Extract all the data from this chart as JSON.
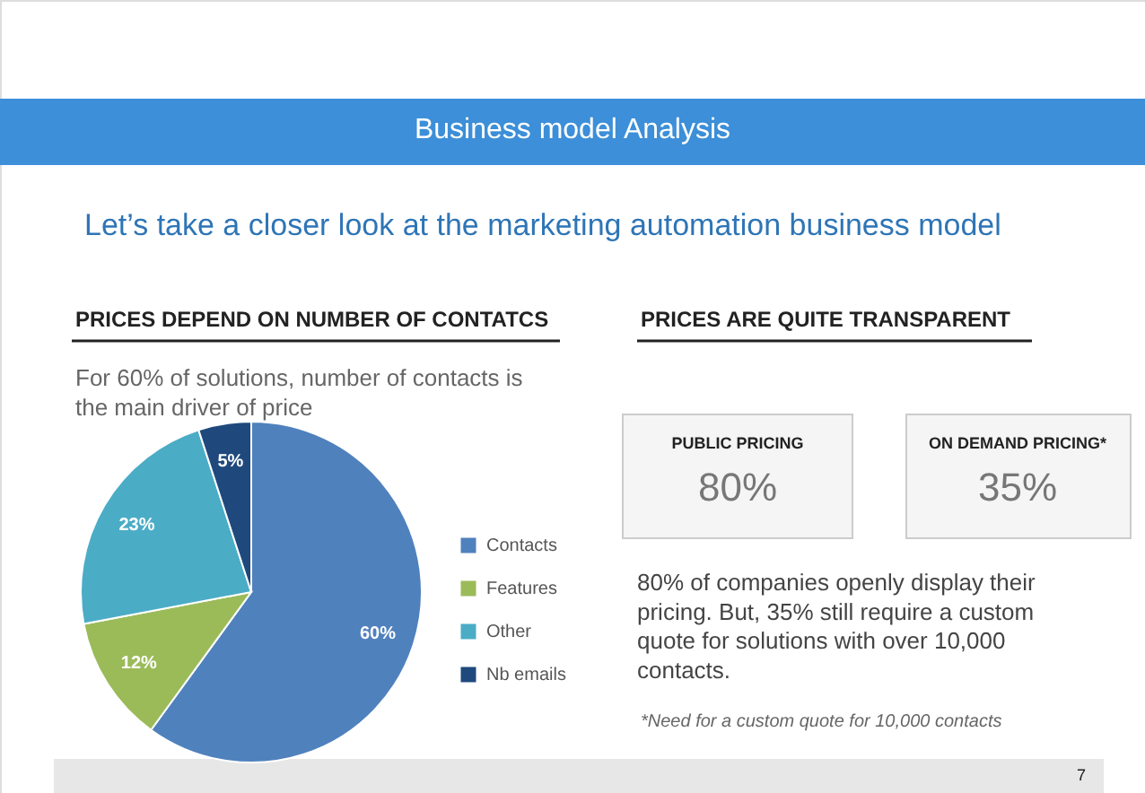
{
  "chart_data": {
    "type": "pie",
    "title": "Business model Analysis",
    "subtitle": "Let’s take a closer look at the marketing automation business model",
    "categories": [
      "Contacts",
      "Features",
      "Other",
      "Nb emails"
    ],
    "values": [
      60,
      12,
      23,
      5
    ],
    "colors": [
      "#4f81bd",
      "#9bbb59",
      "#4bacc6",
      "#1f497d"
    ],
    "value_labels": [
      "60%",
      "12%",
      "23%",
      "5%"
    ],
    "legend": "right",
    "annotations": [
      "PRICES DEPEND ON NUMBER OF CONTATCS",
      "For 60% of solutions, number of contacts is the main driver of price",
      "PRICES ARE QUITE TRANSPARENT",
      "PUBLIC PRICING",
      "80%",
      "ON DEMAND PRICING*",
      "35%",
      "80% of companies openly display their pricing. But, 35% still require a custom quote for solutions with over 10,000 contacts.",
      "*Need for a custom quote for 10,000 contacts",
      "7"
    ]
  }
}
